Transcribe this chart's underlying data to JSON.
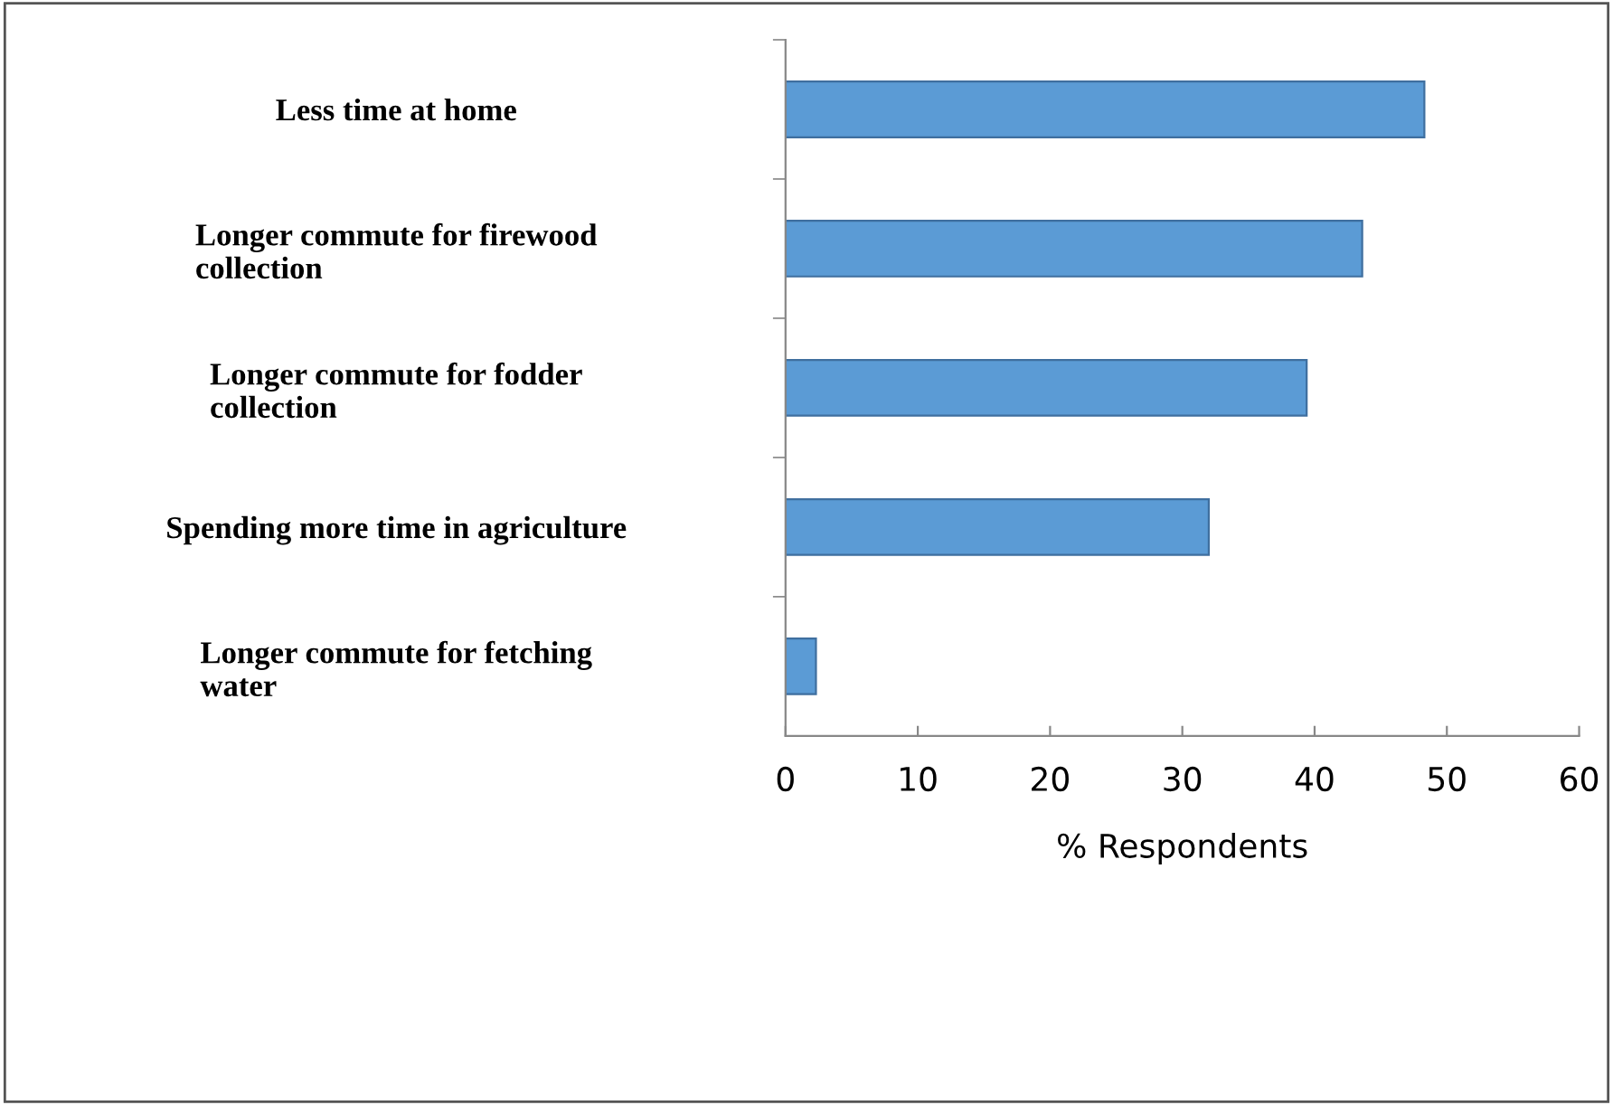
{
  "chart_data": {
    "type": "bar",
    "orientation": "horizontal",
    "xlabel": "% Respondents",
    "categories": [
      "Less time at home",
      "Longer commute for firewood\ncollection",
      "Longer commute for fodder\ncollection",
      "Spending more time in agriculture",
      "Longer commute for fetching\nwater"
    ],
    "values": [
      48.3,
      43.6,
      39.4,
      32.0,
      2.3
    ],
    "color": "#5b9bd5",
    "xlim": [
      0,
      60
    ],
    "xticks": [
      0,
      10,
      20,
      30,
      40,
      50,
      60
    ],
    "grid": false,
    "legend": false
  }
}
